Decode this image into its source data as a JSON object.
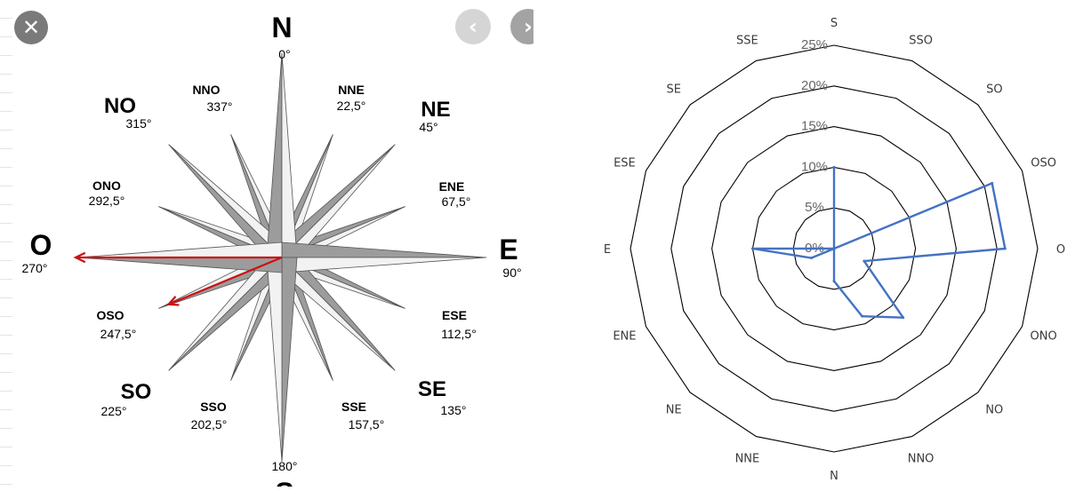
{
  "viewer": {
    "close_icon": "close-icon",
    "prev_icon": "chevron-left-icon",
    "next_icon": "chevron-right-icon",
    "close_glyph": "✕",
    "prev_glyph": "‹",
    "next_glyph": "›"
  },
  "compass": {
    "arrow_color": "#cc1111",
    "labels": [
      {
        "id": "n",
        "name": "N",
        "deg": "0°"
      },
      {
        "id": "nne",
        "name": "NNE",
        "deg": "22,5°"
      },
      {
        "id": "ne",
        "name": "NE",
        "deg": "45°"
      },
      {
        "id": "ene",
        "name": "ENE",
        "deg": "67,5°"
      },
      {
        "id": "e",
        "name": "E",
        "deg": "90°"
      },
      {
        "id": "ese",
        "name": "ESE",
        "deg": "112,5°"
      },
      {
        "id": "se",
        "name": "SE",
        "deg": "135°"
      },
      {
        "id": "sse",
        "name": "SSE",
        "deg": "157,5°"
      },
      {
        "id": "s",
        "name": "S",
        "deg": "180°"
      },
      {
        "id": "sso",
        "name": "SSO",
        "deg": "202,5°"
      },
      {
        "id": "so",
        "name": "SO",
        "deg": "225°"
      },
      {
        "id": "oso",
        "name": "OSO",
        "deg": "247,5°"
      },
      {
        "id": "o",
        "name": "O",
        "deg": "270°"
      },
      {
        "id": "ono",
        "name": "ONO",
        "deg": "292,5°"
      },
      {
        "id": "no",
        "name": "NO",
        "deg": "315°"
      },
      {
        "id": "nno",
        "name": "NNO",
        "deg": "337°"
      }
    ],
    "arrows": [
      "O",
      "OSO"
    ]
  },
  "chart_data": {
    "type": "radar",
    "categories": [
      "S",
      "SSO",
      "SO",
      "OSO",
      "O",
      "ONO",
      "NO",
      "NNO",
      "N",
      "NNE",
      "NE",
      "ENE",
      "E",
      "ESE",
      "SE",
      "SSE"
    ],
    "rings": [
      "0%",
      "5%",
      "10%",
      "15%",
      "20%",
      "25%"
    ],
    "ylim": [
      0,
      25
    ],
    "series": [
      {
        "color": "#4472c4",
        "values": [
          10,
          0,
          0,
          21,
          21,
          4,
          12,
          9,
          4,
          0,
          0,
          3,
          10,
          0,
          0,
          0
        ]
      }
    ],
    "grid": true,
    "legend": "none"
  }
}
